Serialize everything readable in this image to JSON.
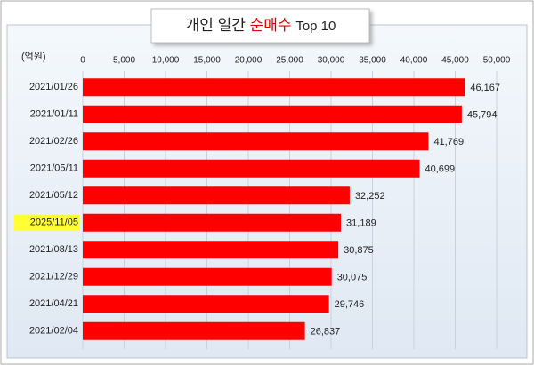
{
  "chart_data": {
    "type": "bar",
    "orientation": "horizontal",
    "title": {
      "prefix": "개인 일간",
      "highlight": "순매수",
      "suffix": "Top 10",
      "highlight_color": "#e00000"
    },
    "unit_label": "(억원)",
    "categories": [
      "2021/01/26",
      "2021/01/11",
      "2021/02/26",
      "2021/05/11",
      "2021/05/12",
      "2025/11/05",
      "2021/08/13",
      "2021/12/29",
      "2021/04/21",
      "2021/02/04"
    ],
    "values": [
      46167,
      45794,
      41769,
      40699,
      32252,
      31189,
      30875,
      30075,
      29746,
      26837
    ],
    "value_labels": [
      "46,167",
      "45,794",
      "41,769",
      "40,699",
      "32,252",
      "31,189",
      "30,875",
      "30,075",
      "29,746",
      "26,837"
    ],
    "color": "#ff0000",
    "value_label_color": "#c00000",
    "category_highlight": {
      "index": 5,
      "color": "#ffff33"
    },
    "xlim": [
      0,
      50000
    ],
    "xticks": [
      0,
      {
        "value": 5000,
        "label": "5,000"
      },
      {
        "value": 10000,
        "label": "10,000"
      },
      {
        "value": 15000,
        "label": "15,000"
      },
      {
        "value": 20000,
        "label": "20,000"
      },
      {
        "value": 25000,
        "label": "25,000"
      },
      {
        "value": 30000,
        "label": "30,000"
      },
      {
        "value": 35000,
        "label": "35,000"
      },
      {
        "value": 40000,
        "label": "40,000"
      },
      {
        "value": 45000,
        "label": "45,000"
      },
      {
        "value": 50000,
        "label": "50,000"
      }
    ],
    "grid": true
  }
}
